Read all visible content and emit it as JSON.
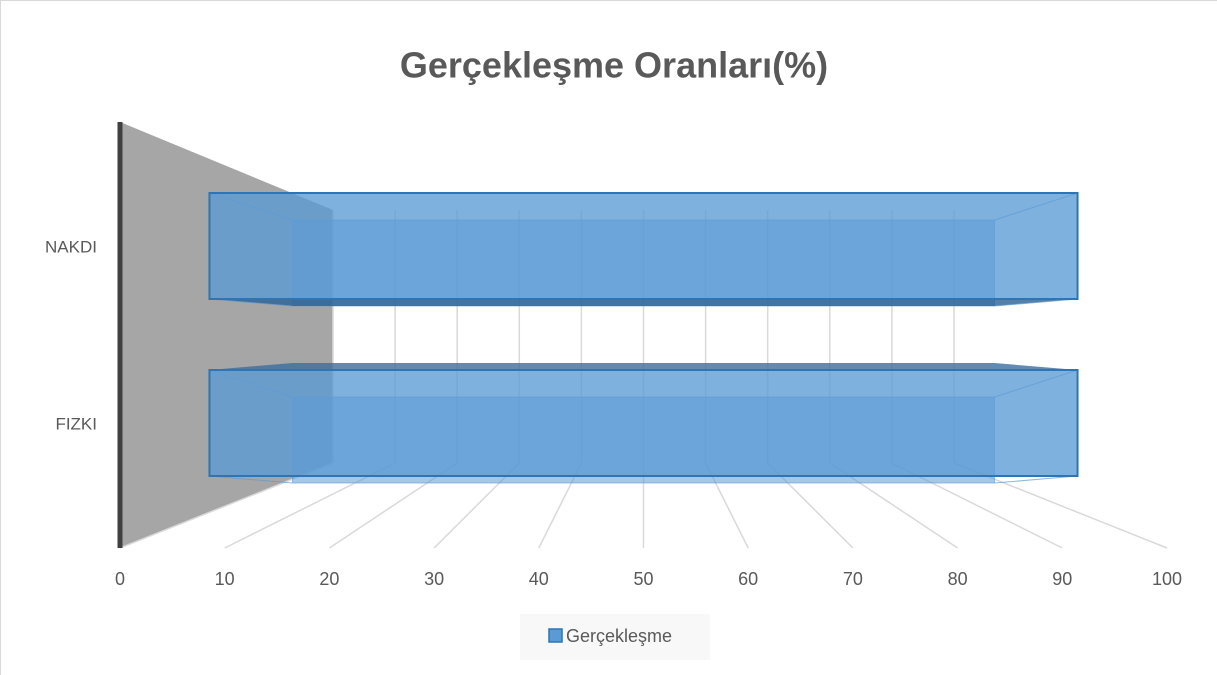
{
  "chart_data": {
    "type": "bar3d",
    "orientation": "horizontal",
    "title": "Gerçekleşme Oranları(%)",
    "categories": [
      "NAKDI",
      "FIZKI"
    ],
    "series": [
      {
        "name": "Gerçekleşme",
        "color": "#5b9bd5",
        "values": [
          100,
          100
        ]
      }
    ],
    "xlim": [
      0,
      100
    ],
    "xticks": [
      0,
      10,
      20,
      30,
      40,
      50,
      60,
      70,
      80,
      90,
      100
    ],
    "grid": true,
    "legend": "bottom"
  }
}
